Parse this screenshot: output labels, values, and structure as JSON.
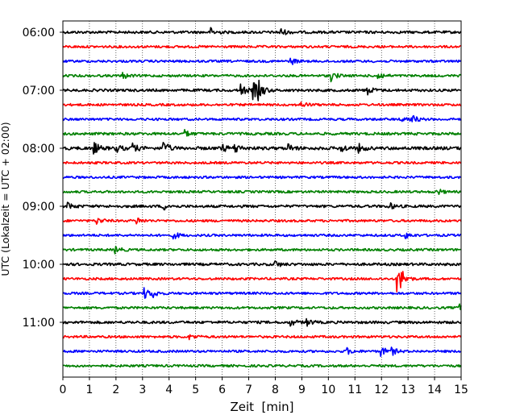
{
  "chart_data": {
    "type": "line",
    "title": "",
    "xlabel": "Zeit  [min]",
    "ylabel": "UTC (Lokalzeit = UTC + 02:00)",
    "xlim": [
      0,
      15
    ],
    "x_ticks": [
      "0",
      "1",
      "2",
      "3",
      "4",
      "5",
      "6",
      "7",
      "8",
      "9",
      "10",
      "11",
      "12",
      "13",
      "14",
      "15"
    ],
    "y_tick_labels": [
      "06:00",
      "07:00",
      "08:00",
      "09:00",
      "10:00",
      "11:00"
    ],
    "grid": "vertical dotted",
    "trace_interval_min": 15,
    "trace_colors": [
      "#000000",
      "#ff0000",
      "#0000ff",
      "#008000"
    ],
    "traces": [
      {
        "start": "06:00",
        "color": "#000000",
        "noise": 1.0,
        "events": [
          {
            "t": 5.6,
            "amp": 3
          },
          {
            "t": 8.2,
            "amp": 3
          }
        ]
      },
      {
        "start": "06:15",
        "color": "#ff0000",
        "noise": 0.9,
        "events": []
      },
      {
        "start": "06:30",
        "color": "#0000ff",
        "noise": 0.9,
        "events": [
          {
            "t": 8.6,
            "amp": 2.5
          }
        ]
      },
      {
        "start": "06:45",
        "color": "#008000",
        "noise": 0.9,
        "events": [
          {
            "t": 2.3,
            "amp": 2
          },
          {
            "t": 10.1,
            "amp": 4
          },
          {
            "t": 11.9,
            "amp": 3
          }
        ]
      },
      {
        "start": "07:00",
        "color": "#000000",
        "noise": 1.0,
        "events": [
          {
            "t": 6.7,
            "amp": 5
          },
          {
            "t": 7.2,
            "amp": 7
          },
          {
            "t": 7.4,
            "amp": 5
          },
          {
            "t": 11.5,
            "amp": 3
          }
        ]
      },
      {
        "start": "07:15",
        "color": "#ff0000",
        "noise": 0.9,
        "events": [
          {
            "t": 9.0,
            "amp": 2.5
          }
        ]
      },
      {
        "start": "07:30",
        "color": "#0000ff",
        "noise": 0.9,
        "events": [
          {
            "t": 12.8,
            "amp": 3
          },
          {
            "t": 13.2,
            "amp": 2.5
          }
        ]
      },
      {
        "start": "07:45",
        "color": "#008000",
        "noise": 1.0,
        "events": [
          {
            "t": 4.6,
            "amp": 2.5
          }
        ]
      },
      {
        "start": "08:00",
        "color": "#000000",
        "noise": 1.2,
        "events": [
          {
            "t": 1.2,
            "amp": 4
          },
          {
            "t": 2.0,
            "amp": 3
          },
          {
            "t": 2.6,
            "amp": 4
          },
          {
            "t": 3.8,
            "amp": 5
          },
          {
            "t": 6.0,
            "amp": 3
          },
          {
            "t": 6.5,
            "amp": 3.5
          },
          {
            "t": 8.5,
            "amp": 3
          },
          {
            "t": 10.5,
            "amp": 3
          },
          {
            "t": 11.1,
            "amp": 4
          }
        ]
      },
      {
        "start": "08:15",
        "color": "#ff0000",
        "noise": 0.9,
        "events": []
      },
      {
        "start": "08:30",
        "color": "#0000ff",
        "noise": 0.9,
        "events": []
      },
      {
        "start": "08:45",
        "color": "#008000",
        "noise": 0.9,
        "events": [
          {
            "t": 14.1,
            "amp": 2.5
          }
        ]
      },
      {
        "start": "09:00",
        "color": "#000000",
        "noise": 1.0,
        "events": [
          {
            "t": 0.2,
            "amp": 3
          },
          {
            "t": 3.8,
            "amp": 2.5
          },
          {
            "t": 12.3,
            "amp": 2.5
          }
        ]
      },
      {
        "start": "09:15",
        "color": "#ff0000",
        "noise": 0.9,
        "events": [
          {
            "t": 1.3,
            "amp": 2.5
          },
          {
            "t": 2.8,
            "amp": 2.5
          }
        ]
      },
      {
        "start": "09:30",
        "color": "#0000ff",
        "noise": 0.9,
        "events": [
          {
            "t": 4.2,
            "amp": 2.5
          },
          {
            "t": 12.9,
            "amp": 2.5
          }
        ]
      },
      {
        "start": "09:45",
        "color": "#008000",
        "noise": 0.9,
        "events": [
          {
            "t": 2.0,
            "amp": 2.5
          }
        ]
      },
      {
        "start": "10:00",
        "color": "#000000",
        "noise": 1.0,
        "events": [
          {
            "t": 8.0,
            "amp": 2.5
          }
        ]
      },
      {
        "start": "10:15",
        "color": "#ff0000",
        "noise": 0.9,
        "events": [
          {
            "t": 12.6,
            "amp": 10
          },
          {
            "t": 12.75,
            "amp": 4
          }
        ]
      },
      {
        "start": "10:30",
        "color": "#0000ff",
        "noise": 0.9,
        "events": [
          {
            "t": 3.1,
            "amp": 4
          },
          {
            "t": 3.4,
            "amp": 2.5
          }
        ]
      },
      {
        "start": "10:45",
        "color": "#008000",
        "noise": 0.9,
        "events": [
          {
            "t": 14.9,
            "amp": 3
          }
        ]
      },
      {
        "start": "11:00",
        "color": "#000000",
        "noise": 1.0,
        "events": [
          {
            "t": 8.6,
            "amp": 2.5
          },
          {
            "t": 9.2,
            "amp": 2.5
          }
        ]
      },
      {
        "start": "11:15",
        "color": "#ff0000",
        "noise": 0.9,
        "events": [
          {
            "t": 4.8,
            "amp": 2
          }
        ]
      },
      {
        "start": "11:30",
        "color": "#0000ff",
        "noise": 0.9,
        "events": [
          {
            "t": 10.7,
            "amp": 2.5
          },
          {
            "t": 12.0,
            "amp": 3.5
          },
          {
            "t": 12.4,
            "amp": 2.5
          }
        ]
      },
      {
        "start": "11:45",
        "color": "#008000",
        "noise": 0.9,
        "events": []
      }
    ]
  }
}
